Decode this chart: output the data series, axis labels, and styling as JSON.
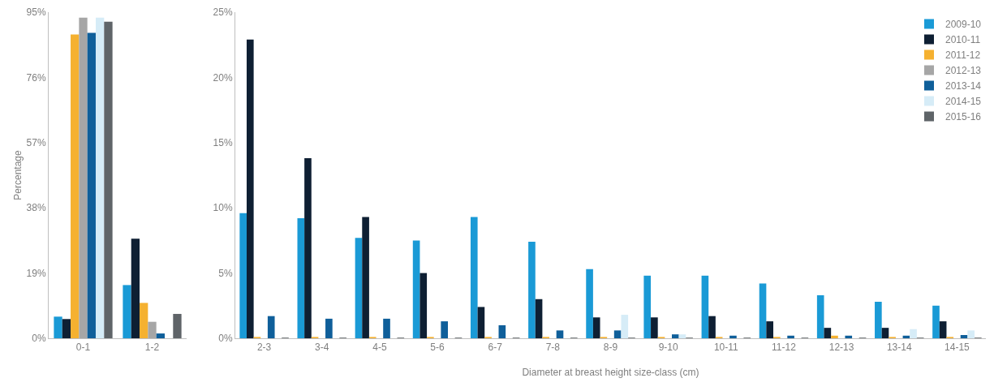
{
  "chart_data": [
    {
      "type": "bar",
      "ylabel": "Percentage",
      "categories": [
        "0-1",
        "1-2"
      ],
      "ylim": [
        0,
        95
      ],
      "yticks": [
        {
          "value": 0,
          "label": "0%"
        },
        {
          "value": 19,
          "label": "19%"
        },
        {
          "value": 38,
          "label": "38%"
        },
        {
          "value": 57,
          "label": "57%"
        },
        {
          "value": 76,
          "label": "76%"
        },
        {
          "value": 95,
          "label": "95%"
        }
      ],
      "grid": false,
      "legend": false,
      "series": [
        {
          "color": "#1a9ad6",
          "values": [
            6.3,
            15.5
          ]
        },
        {
          "color": "#0e1f33",
          "values": [
            5.6,
            29.0
          ]
        },
        {
          "color": "#f5b130",
          "values": [
            88.5,
            10.3
          ]
        },
        {
          "color": "#a6a6a6",
          "values": [
            93.4,
            4.8
          ]
        },
        {
          "color": "#0f5f9a",
          "values": [
            89.0,
            1.4
          ]
        },
        {
          "color": "#d6ecf7",
          "values": [
            93.4,
            0
          ]
        },
        {
          "color": "#5f6468",
          "values": [
            92.2,
            7.1
          ]
        }
      ]
    },
    {
      "type": "bar",
      "xlabel": "Diameter at breast height size-class (cm)",
      "categories": [
        "2-3",
        "3-4",
        "4-5",
        "5-6",
        "6-7",
        "7-8",
        "8-9",
        "9-10",
        "10-11",
        "11-12",
        "12-13",
        "13-14",
        "14-15"
      ],
      "ylim": [
        0,
        25
      ],
      "yticks": [
        {
          "value": 0,
          "label": "0%"
        },
        {
          "value": 5,
          "label": "5%"
        },
        {
          "value": 10,
          "label": "10%"
        },
        {
          "value": 15,
          "label": "15%"
        },
        {
          "value": 20,
          "label": "20%"
        },
        {
          "value": 25,
          "label": "25%"
        }
      ],
      "grid": false,
      "legend": "top right",
      "series": [
        {
          "name": "2009-10",
          "color": "#1a9ad6",
          "values": [
            9.6,
            9.2,
            7.7,
            7.5,
            9.3,
            7.4,
            5.3,
            4.8,
            4.8,
            4.2,
            3.3,
            2.8,
            2.5
          ]
        },
        {
          "name": "2010-11",
          "color": "#0e1f33",
          "values": [
            22.9,
            13.8,
            9.3,
            5.0,
            2.4,
            3.0,
            1.6,
            1.6,
            1.7,
            1.3,
            0.8,
            0.8,
            1.3
          ]
        },
        {
          "name": "2011-12",
          "color": "#f5b130",
          "values": [
            0.1,
            0.1,
            0.1,
            0.1,
            0.1,
            0.1,
            0.1,
            0.1,
            0.1,
            0.1,
            0.2,
            0.1,
            0.1
          ]
        },
        {
          "name": "2012-13",
          "color": "#a6a6a6",
          "values": [
            null,
            null,
            null,
            null,
            null,
            null,
            null,
            null,
            null,
            null,
            null,
            null,
            null
          ]
        },
        {
          "name": "2013-14",
          "color": "#0f5f9a",
          "values": [
            1.7,
            1.5,
            1.5,
            1.3,
            1.0,
            0.6,
            0.6,
            0.3,
            0.2,
            0.2,
            0.2,
            0.2,
            0.25
          ]
        },
        {
          "name": "2014-15",
          "color": "#d6ecf7",
          "values": [
            null,
            null,
            null,
            null,
            null,
            null,
            1.8,
            0.3,
            null,
            null,
            null,
            0.7,
            0.6
          ]
        },
        {
          "name": "2015-16",
          "color": "#5f6468",
          "values": [
            0.05,
            0.05,
            0.05,
            0.05,
            0.05,
            0.05,
            0.05,
            0.05,
            0.05,
            0.05,
            0.05,
            0.05,
            0.05
          ]
        }
      ]
    }
  ]
}
